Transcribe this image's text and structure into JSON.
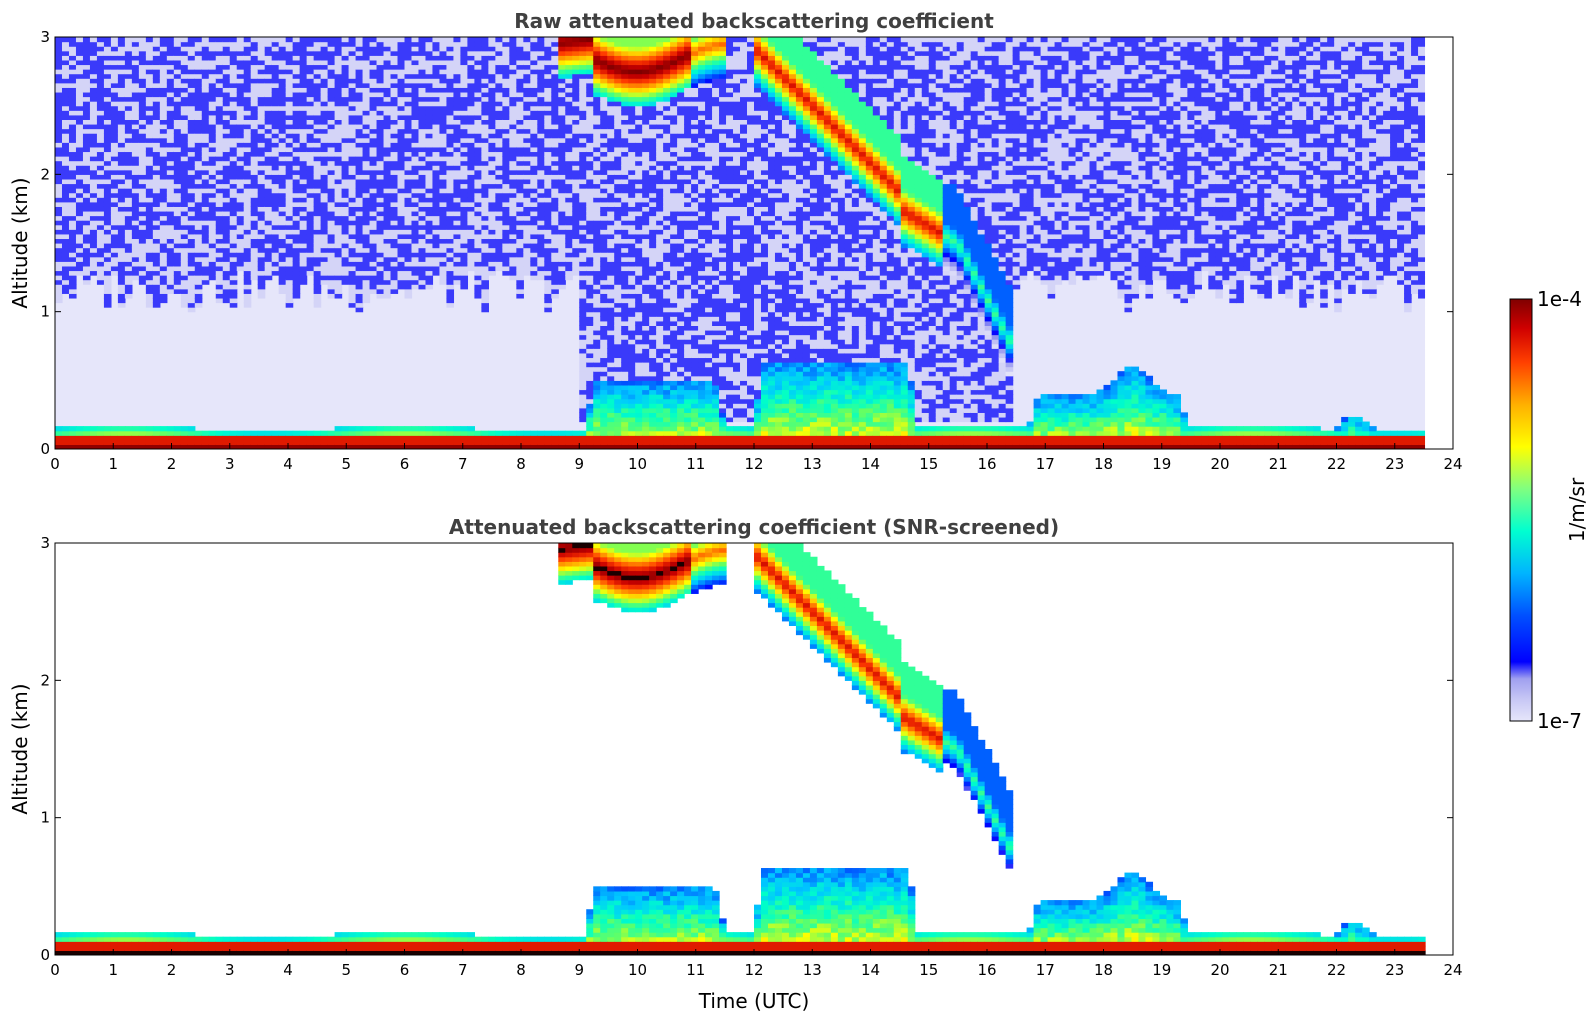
{
  "chart_data": [
    {
      "type": "heatmap",
      "title": "Raw attenuated backscattering coefficient",
      "xlabel": "",
      "ylabel": "Altitude (km)",
      "xlim": [
        0,
        24
      ],
      "ylim": [
        0,
        3
      ],
      "xticks": [
        0,
        1,
        2,
        3,
        4,
        5,
        6,
        7,
        8,
        9,
        10,
        11,
        12,
        13,
        14,
        15,
        16,
        17,
        18,
        19,
        20,
        21,
        22,
        23,
        24
      ],
      "yticks": [
        0,
        1,
        2,
        3
      ],
      "data_extent_x": [
        0,
        23.5
      ],
      "screened": false
    },
    {
      "type": "heatmap",
      "title": "Attenuated backscattering coefficient (SNR-screened)",
      "xlabel": "Time (UTC)",
      "ylabel": "Altitude (km)",
      "xlim": [
        0,
        24
      ],
      "ylim": [
        0,
        3
      ],
      "xticks": [
        0,
        1,
        2,
        3,
        4,
        5,
        6,
        7,
        8,
        9,
        10,
        11,
        12,
        13,
        14,
        15,
        16,
        17,
        18,
        19,
        20,
        21,
        22,
        23,
        24
      ],
      "yticks": [
        0,
        1,
        2,
        3
      ],
      "data_extent_x": [
        0,
        23.5
      ],
      "screened": true
    }
  ],
  "colorbar": {
    "label": "1/m/sr",
    "max_label": "1e-4",
    "min_label": "1e-7",
    "scale": "log",
    "range": [
      1e-07,
      0.0001
    ],
    "colormap": [
      "#e6e6fa",
      "#c8c8f5",
      "#a0a0f0",
      "#0000ff",
      "#0064ff",
      "#00c8ff",
      "#00ffc8",
      "#64ff64",
      "#ffff00",
      "#ffa000",
      "#ff3c00",
      "#c80000",
      "#800000"
    ]
  }
}
